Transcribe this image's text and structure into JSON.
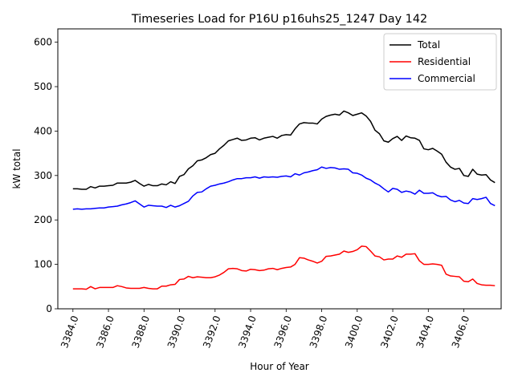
{
  "chart_data": {
    "type": "line",
    "title": "Timeseries Load for P16U p16uhs25_1247  Day 142",
    "xlabel": "Hour of Year",
    "ylabel": "kW total",
    "xlim": [
      3383.15,
      3408.1
    ],
    "ylim": [
      0,
      630
    ],
    "x_ticks": [
      3384,
      3386,
      3388,
      3390,
      3392,
      3394,
      3396,
      3398,
      3400,
      3402,
      3404,
      3406
    ],
    "x_tick_labels": [
      "3384.0",
      "3386.0",
      "3388.0",
      "3390.0",
      "3392.0",
      "3394.0",
      "3396.0",
      "3398.0",
      "3400.0",
      "3402.0",
      "3404.0",
      "3406.0"
    ],
    "y_ticks": [
      0,
      100,
      200,
      300,
      400,
      500,
      600
    ],
    "y_tick_labels": [
      "0",
      "100",
      "200",
      "300",
      "400",
      "500",
      "600"
    ],
    "legend_position": "top-right",
    "x_start": 3384.0,
    "x_step": 0.25,
    "series": [
      {
        "name": "Total",
        "color": "#000000",
        "values": [
          270,
          270,
          269,
          269,
          275,
          272,
          276,
          276,
          277,
          278,
          283,
          283,
          283,
          285,
          289,
          282,
          276,
          280,
          277,
          277,
          281,
          279,
          286,
          282,
          298,
          302,
          315,
          322,
          333,
          335,
          340,
          347,
          350,
          360,
          368,
          378,
          381,
          384,
          379,
          380,
          384,
          385,
          380,
          384,
          386,
          388,
          384,
          390,
          392,
          391,
          405,
          416,
          419,
          418,
          418,
          416,
          427,
          433,
          436,
          438,
          436,
          445,
          441,
          435,
          438,
          441,
          434,
          422,
          402,
          394,
          378,
          375,
          383,
          388,
          379,
          389,
          385,
          384,
          379,
          360,
          358,
          361,
          355,
          348,
          330,
          319,
          314,
          316,
          300,
          298,
          314,
          303,
          301,
          302,
          290,
          284
        ]
      },
      {
        "name": "Residential",
        "color": "#ff0000",
        "values": [
          45,
          45,
          45,
          44,
          50,
          45,
          48,
          48,
          48,
          48,
          52,
          50,
          47,
          46,
          46,
          46,
          48,
          46,
          45,
          45,
          51,
          51,
          54,
          55,
          66,
          67,
          73,
          70,
          72,
          71,
          70,
          70,
          72,
          76,
          82,
          90,
          91,
          90,
          86,
          85,
          89,
          88,
          86,
          87,
          90,
          91,
          88,
          91,
          93,
          94,
          100,
          115,
          114,
          110,
          107,
          103,
          107,
          118,
          119,
          121,
          123,
          130,
          127,
          129,
          133,
          141,
          140,
          130,
          119,
          117,
          110,
          112,
          112,
          119,
          116,
          123,
          123,
          124,
          108,
          100,
          100,
          101,
          100,
          98,
          78,
          74,
          73,
          72,
          62,
          61,
          67,
          57,
          54,
          53,
          53,
          52
        ]
      },
      {
        "name": "Commercial",
        "color": "#0000ff",
        "values": [
          224,
          225,
          224,
          225,
          225,
          226,
          227,
          227,
          229,
          230,
          231,
          234,
          236,
          239,
          243,
          236,
          229,
          233,
          232,
          231,
          231,
          228,
          233,
          229,
          232,
          237,
          242,
          254,
          262,
          263,
          270,
          276,
          278,
          281,
          283,
          286,
          290,
          293,
          293,
          295,
          295,
          297,
          294,
          297,
          296,
          297,
          296,
          298,
          299,
          297,
          304,
          301,
          306,
          308,
          311,
          313,
          319,
          316,
          318,
          317,
          314,
          315,
          314,
          306,
          305,
          301,
          294,
          290,
          283,
          278,
          270,
          263,
          271,
          269,
          262,
          265,
          263,
          258,
          267,
          260,
          260,
          261,
          255,
          252,
          253,
          245,
          241,
          244,
          238,
          237,
          248,
          246,
          248,
          251,
          237,
          232
        ]
      }
    ]
  }
}
